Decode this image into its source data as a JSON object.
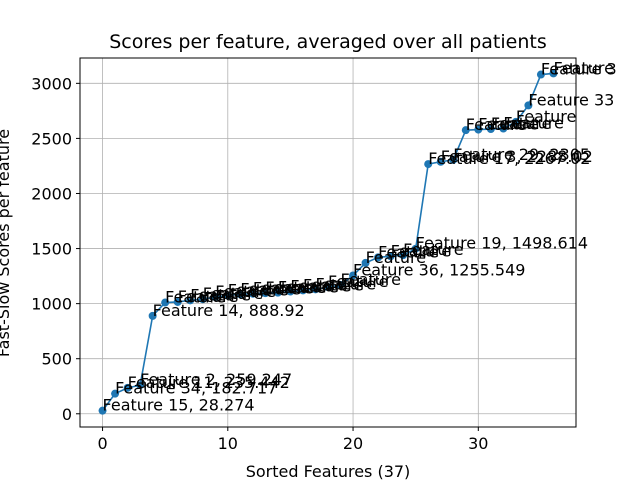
{
  "chart_data": {
    "type": "line",
    "title": "Scores per feature, averaged over all patients",
    "xlabel": "Sorted Features (37)",
    "ylabel": "Fast-Slow Scores per feature",
    "xlim": [
      -1.8,
      37.8
    ],
    "ylim": [
      -120,
      3230
    ],
    "xticks": [
      0,
      10,
      20,
      30
    ],
    "yticks": [
      0,
      500,
      1000,
      1500,
      2000,
      2500,
      3000
    ],
    "grid": true,
    "color": "#1f77b4",
    "values": [
      28.274,
      182.717,
      235.442,
      259.247,
      888.92,
      1010,
      1015,
      1030,
      1040,
      1060,
      1075,
      1085,
      1090,
      1095,
      1100,
      1110,
      1120,
      1130,
      1150,
      1170,
      1255.549,
      1370,
      1420,
      1430,
      1440,
      1498.614,
      2267.02,
      2288.02,
      2305,
      2575,
      2580,
      2585,
      2590,
      2650,
      2800,
      3080,
      3090
    ],
    "labels": [
      "Feature 15, 28.274",
      "Feature 34, 182.717",
      "Feature 11, 235.442",
      "Feature 2, 259.247",
      "Feature 14, 888.92",
      "Feature",
      "Feature",
      "Feature",
      "Feature",
      "Feature",
      "Feature",
      "Feature",
      "Feature",
      "Feature",
      "Feature",
      "Feature",
      "Feature",
      "Feature",
      "Feature",
      "Feature",
      "Feature 36, 1255.549",
      "Feature",
      "Feature",
      "Feature",
      "Feature",
      "Feature 19, 1498.614",
      "Feature 17, 2267.02",
      "Feature 3, 2288.02",
      "Feature 29, 2305",
      "Feature",
      "Feature",
      "Feature",
      "Feature",
      "Feature",
      "Feature 33",
      "Feature 3",
      "Feature"
    ]
  }
}
